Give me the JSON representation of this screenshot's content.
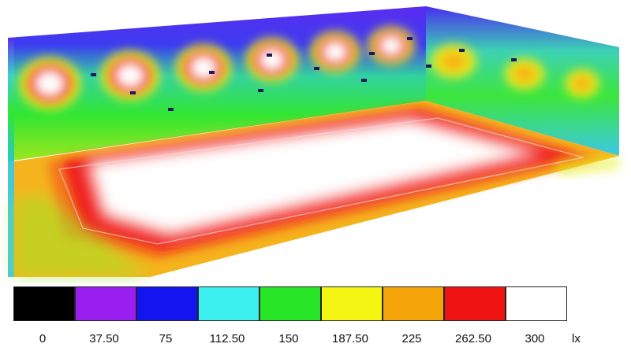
{
  "figure": {
    "description_type": "false-color illuminance rendering",
    "unit": "lx"
  },
  "legend": {
    "steps": [
      {
        "label": "0",
        "color": "#000000"
      },
      {
        "label": "37.50",
        "color": "#9a1ef0"
      },
      {
        "label": "75",
        "color": "#1414f0"
      },
      {
        "label": "112.50",
        "color": "#3cf0f0"
      },
      {
        "label": "150",
        "color": "#28e628"
      },
      {
        "label": "187.50",
        "color": "#f5f514"
      },
      {
        "label": "225",
        "color": "#f5a50a"
      },
      {
        "label": "262.50",
        "color": "#f01414"
      },
      {
        "label": "300",
        "color": "#ffffff"
      }
    ],
    "unit_label": "lx"
  },
  "colors": {
    "violet": "#8a3cf0",
    "blue": "#3c2cf0",
    "cyan": "#28d2c8",
    "green": "#32e632",
    "yellow": "#e6f01e",
    "orange": "#f5a014",
    "red": "#f01e1e",
    "white": "#ffffff"
  }
}
